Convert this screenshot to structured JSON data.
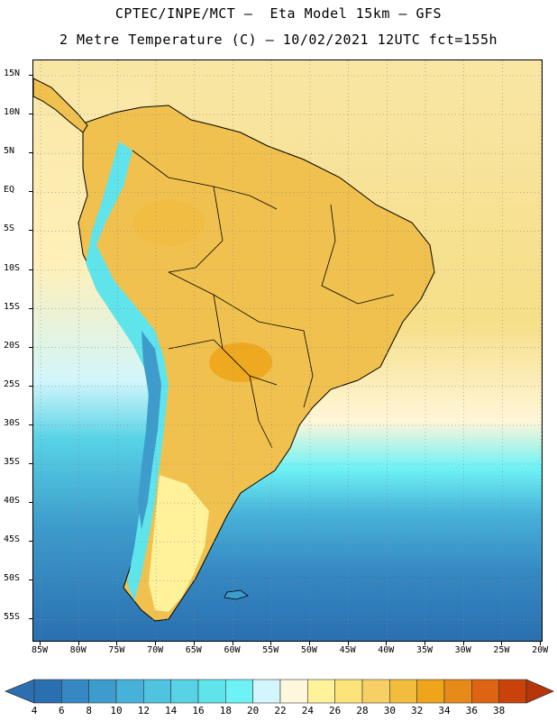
{
  "title": {
    "line1": "CPTEC/INPE/MCT –  Eta Model 15km – GFS",
    "line2": "2 Metre Temperature (C) – 10/02/2021 12UTC fct=155h"
  },
  "map": {
    "lat_labels": [
      "15N",
      "10N",
      "5N",
      "EQ",
      "5S",
      "10S",
      "15S",
      "20S",
      "25S",
      "30S",
      "35S",
      "40S",
      "45S",
      "50S",
      "55S"
    ],
    "lon_labels": [
      "85W",
      "80W",
      "75W",
      "70W",
      "65W",
      "60W",
      "55W",
      "50W",
      "45W",
      "40W",
      "35W",
      "30W",
      "25W",
      "20W"
    ],
    "ocean_color": "#f5d97a",
    "land_color": "#f0c14e"
  },
  "colorbar": {
    "labels": [
      "4",
      "6",
      "8",
      "10",
      "12",
      "14",
      "16",
      "18",
      "20",
      "22",
      "24",
      "26",
      "28",
      "30",
      "32",
      "34",
      "36",
      "38"
    ],
    "colors": [
      "#2a6fb0",
      "#3588c2",
      "#3d9ccc",
      "#47b2d9",
      "#4fc3df",
      "#58d3e6",
      "#5fe4ec",
      "#6ff2f5",
      "#d2f6fb",
      "#fff7dc",
      "#fff29a",
      "#fce37a",
      "#f6d064",
      "#f2bc3c",
      "#eea51a",
      "#e68a1a",
      "#dd6412",
      "#c8420a"
    ],
    "low_end_color": "#2a6fb0",
    "high_end_color": "#b8340a"
  }
}
